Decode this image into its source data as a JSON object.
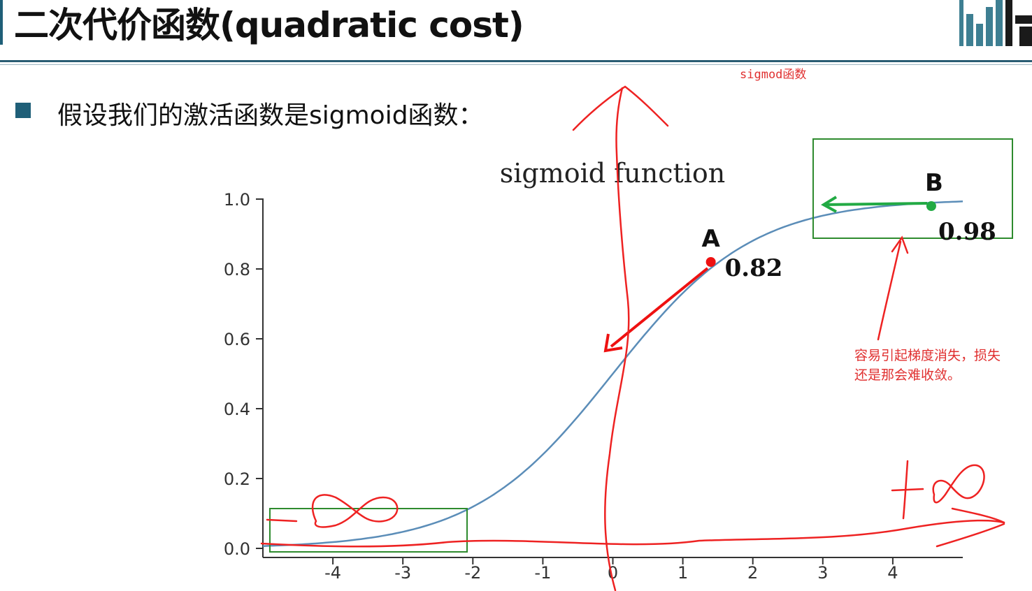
{
  "header": {
    "title": "二次代价函数(quadratic cost)"
  },
  "annotations": {
    "top_note": "sigmod函数",
    "bullet": "假设我们的激活函数是sigmoid函数：",
    "gradient_note_line1": "容易引起梯度消失，损失",
    "gradient_note_line2": "还是那会难收敛。",
    "plus_infinity": "+∞",
    "minus_infinity": "-∞"
  },
  "colors": {
    "curve": "#5b8db8",
    "point_a": "#ee1111",
    "point_b": "#22aa44",
    "box": "#2e8b2e",
    "annotation": "#e03030",
    "brand": "#1f5f78"
  },
  "chart_data": {
    "type": "line",
    "title": "sigmoid function",
    "xlabel": "",
    "ylabel": "",
    "xlim": [
      -5,
      5
    ],
    "ylim": [
      0,
      1.0
    ],
    "x_ticks": [
      {
        "value": -4,
        "label": "-4"
      },
      {
        "value": -3,
        "label": "-3"
      },
      {
        "value": -2,
        "label": "-2"
      },
      {
        "value": -1,
        "label": "-1"
      },
      {
        "value": 0,
        "label": "0"
      },
      {
        "value": 1,
        "label": "1"
      },
      {
        "value": 2,
        "label": "2"
      },
      {
        "value": 3,
        "label": "3"
      },
      {
        "value": 4,
        "label": "4"
      }
    ],
    "y_ticks": [
      {
        "value": 0,
        "label": "0.0"
      },
      {
        "value": 0.2,
        "label": "0.2"
      },
      {
        "value": 0.4,
        "label": "0.4"
      },
      {
        "value": 0.6,
        "label": "0.6"
      },
      {
        "value": 0.8,
        "label": "0.8"
      },
      {
        "value": 1.0,
        "label": "1.0"
      }
    ],
    "series": [
      {
        "function": "sigmoid",
        "x_range": [
          -5,
          5
        ]
      }
    ],
    "points": [
      {
        "name": "A",
        "x": 1.4,
        "y": 0.82,
        "label": "0.82"
      },
      {
        "name": "B",
        "x": 4.55,
        "y": 0.98,
        "label": "0.98"
      }
    ],
    "grid": false
  }
}
